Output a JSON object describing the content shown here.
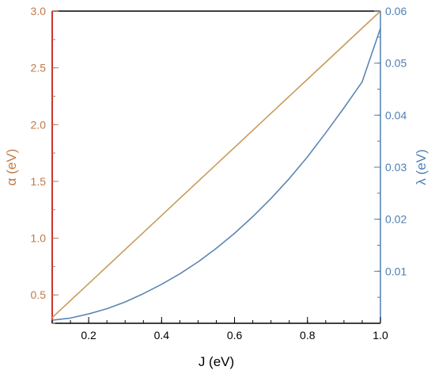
{
  "colors": {
    "left_axis": "#c07a4a",
    "left_spine": "#cc3333",
    "right_axis": "#4f7fb0",
    "alpha_line": "#c99a5b",
    "lambda_line": "#5b86b4",
    "bottom_axis": "#000000"
  },
  "chart_data": {
    "type": "line",
    "title": "",
    "xlabel": "J (eV)",
    "ylabel_left": "α (eV)",
    "ylabel_right": "λ (eV)",
    "xlim": [
      0.1,
      1.0
    ],
    "ylim_left": [
      0.25,
      3.0
    ],
    "ylim_right": [
      0.0,
      0.06
    ],
    "xticks": [
      0.2,
      0.4,
      0.6,
      0.8,
      1.0
    ],
    "xtick_labels": [
      "0.2",
      "0.4",
      "0.6",
      "0.8",
      "1.0"
    ],
    "yticks_left": [
      0.5,
      1.0,
      1.5,
      2.0,
      2.5,
      3.0
    ],
    "ytick_labels_left": [
      "0.5",
      "1.0",
      "1.5",
      "2.0",
      "2.5",
      "3.0"
    ],
    "yticks_right": [
      0.01,
      0.02,
      0.03,
      0.04,
      0.05,
      0.06
    ],
    "ytick_labels_right": [
      "0.01",
      "0.02",
      "0.03",
      "0.04",
      "0.05",
      "0.06"
    ],
    "grid": false,
    "series": [
      {
        "axis": "left",
        "color_key": "alpha_line",
        "x": [
          0.1,
          0.2,
          0.3,
          0.4,
          0.5,
          0.6,
          0.7,
          0.8,
          0.9,
          1.0
        ],
        "y": [
          0.3,
          0.6,
          0.9,
          1.2,
          1.5,
          1.8,
          2.1,
          2.4,
          2.7,
          3.0
        ]
      },
      {
        "axis": "right",
        "color_key": "lambda_line",
        "x": [
          0.1,
          0.15,
          0.2,
          0.25,
          0.3,
          0.35,
          0.4,
          0.45,
          0.5,
          0.55,
          0.6,
          0.65,
          0.7,
          0.75,
          0.8,
          0.85,
          0.9,
          0.95,
          1.0
        ],
        "y": [
          0.0006,
          0.001,
          0.0018,
          0.0028,
          0.0041,
          0.0057,
          0.0075,
          0.0095,
          0.0118,
          0.0144,
          0.0173,
          0.0205,
          0.024,
          0.0278,
          0.032,
          0.0366,
          0.0414,
          0.0464,
          0.0567
        ]
      }
    ]
  }
}
